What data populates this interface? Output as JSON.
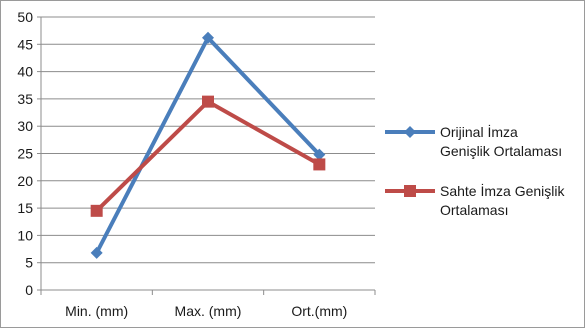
{
  "chart_data": {
    "type": "line",
    "categories": [
      "Min. (mm)",
      "Max. (mm)",
      "Ort.(mm)"
    ],
    "ylim": [
      0,
      50
    ],
    "yticks": [
      0,
      5,
      10,
      15,
      20,
      25,
      30,
      35,
      40,
      45,
      50
    ],
    "grid": true,
    "legend_position": "right",
    "series": [
      {
        "name": "Orijinal İmza Genişlik Ortalaması",
        "legend_lines": [
          "Orijinal İmza",
          "Genişlik Ortalaması"
        ],
        "values": [
          6.8,
          46.2,
          24.8
        ],
        "color": "#4a7ebb",
        "marker": "diamond"
      },
      {
        "name": "Sahte İmza Genişlik Ortalaması",
        "legend_lines": [
          "Sahte İmza Genişlik",
          "Ortalaması"
        ],
        "values": [
          14.5,
          34.5,
          23.0
        ],
        "color": "#be4b48",
        "marker": "square"
      }
    ]
  }
}
